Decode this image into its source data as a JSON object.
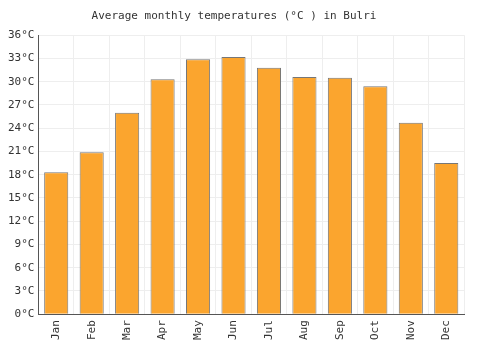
{
  "chart_data": {
    "type": "bar",
    "title": "Average monthly temperatures (°C ) in Bulri",
    "categories": [
      "Jan",
      "Feb",
      "Mar",
      "Apr",
      "May",
      "Jun",
      "Jul",
      "Aug",
      "Sep",
      "Oct",
      "Nov",
      "Dec"
    ],
    "values": [
      18.3,
      20.9,
      26.0,
      30.3,
      32.9,
      33.2,
      31.8,
      30.6,
      30.5,
      29.4,
      24.7,
      19.5
    ],
    "color": "#fba52e",
    "ylim": [
      0,
      36
    ],
    "yticks": [
      {
        "value": 0,
        "label": "0°C"
      },
      {
        "value": 3,
        "label": "3°C"
      },
      {
        "value": 6,
        "label": "6°C"
      },
      {
        "value": 9,
        "label": "9°C"
      },
      {
        "value": 12,
        "label": "12°C"
      },
      {
        "value": 15,
        "label": "15°C"
      },
      {
        "value": 18,
        "label": "18°C"
      },
      {
        "value": 21,
        "label": "21°C"
      },
      {
        "value": 24,
        "label": "24°C"
      },
      {
        "value": 27,
        "label": "27°C"
      },
      {
        "value": 30,
        "label": "30°C"
      },
      {
        "value": 33,
        "label": "33°C"
      },
      {
        "value": 36,
        "label": "36°C"
      }
    ],
    "grid": true
  }
}
